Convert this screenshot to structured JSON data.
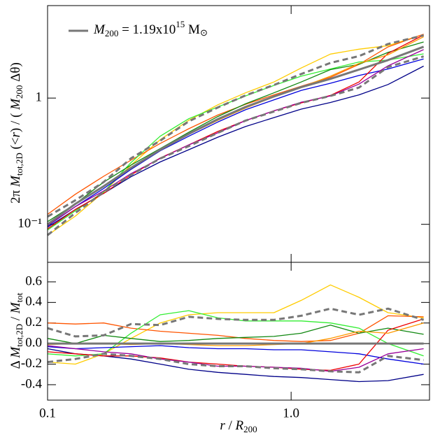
{
  "chart_data": [
    {
      "type": "line",
      "log_x": true,
      "log_y": true,
      "x": [
        0.1,
        0.13,
        0.17,
        0.22,
        0.29,
        0.38,
        0.5,
        0.65,
        0.85,
        1.1,
        1.45,
        1.9,
        2.5,
        3.5
      ],
      "xlim": [
        0.1,
        3.7
      ],
      "xticks": [
        0.1,
        1
      ],
      "ylim": [
        0.05,
        5.4
      ],
      "yticks": [
        {
          "value": 0.1,
          "label": "10⁻¹"
        },
        1
      ],
      "y_label_parts": [
        "2π ",
        "M",
        "tot,2D",
        " (<",
        "r",
        ") / ( ",
        "M",
        "200",
        " Δθ)"
      ],
      "series": [
        {
          "color": "#ffcc00",
          "values": [
            0.082,
            0.116,
            0.18,
            0.294,
            0.468,
            0.666,
            0.884,
            1.1,
            1.34,
            1.73,
            2.23,
            2.44,
            2.6,
            3.19
          ]
        },
        {
          "color": "#ff5500",
          "values": [
            0.12,
            0.173,
            0.24,
            0.322,
            0.437,
            0.572,
            0.734,
            0.893,
            1.06,
            1.24,
            1.46,
            1.85,
            2.54,
            3.21
          ]
        },
        {
          "color": "#33ee33",
          "values": [
            0.09,
            0.128,
            0.18,
            0.308,
            0.499,
            0.686,
            0.85,
            1.04,
            1.26,
            1.49,
            1.7,
            1.93,
            2.0,
            2.24
          ]
        },
        {
          "color": "#118811",
          "values": [
            0.105,
            0.145,
            0.216,
            0.294,
            0.398,
            0.536,
            0.714,
            0.901,
            1.1,
            1.34,
            1.68,
            1.85,
            2.3,
            2.78
          ]
        },
        {
          "color": "#0000dd",
          "values": [
            0.097,
            0.138,
            0.192,
            0.272,
            0.382,
            0.499,
            0.646,
            0.808,
            0.968,
            1.15,
            1.31,
            1.51,
            1.7,
            2.04
          ]
        },
        {
          "color": "#000088",
          "values": [
            0.095,
            0.131,
            0.176,
            0.238,
            0.312,
            0.39,
            0.49,
            0.595,
            0.7,
            0.817,
            0.923,
            1.06,
            1.28,
            1.79
          ]
        },
        {
          "color": "#ee0000",
          "values": [
            0.092,
            0.131,
            0.176,
            0.246,
            0.335,
            0.426,
            0.544,
            0.663,
            0.793,
            0.915,
            1.05,
            1.34,
            2.26,
            3.16
          ]
        },
        {
          "color": "#990099",
          "values": [
            0.098,
            0.138,
            0.184,
            0.252,
            0.332,
            0.426,
            0.53,
            0.663,
            0.793,
            0.927,
            1.04,
            1.29,
            1.8,
            2.42
          ]
        },
        {
          "color": "#ff9900",
          "values": [
            0.099,
            0.145,
            0.2,
            0.277,
            0.39,
            0.515,
            0.666,
            0.833,
            1.02,
            1.22,
            1.49,
            1.88,
            2.2,
            3.06
          ]
        },
        {
          "color": "#777777",
          "dash": true,
          "bold": true,
          "values": [
            0.115,
            0.155,
            0.216,
            0.333,
            0.46,
            0.655,
            0.843,
            1.05,
            1.27,
            1.55,
            1.9,
            2.15,
            2.68,
            3.14
          ]
        },
        {
          "color": "#777777",
          "dash": true,
          "bold": true,
          "values": [
            0.082,
            0.123,
            0.18,
            0.246,
            0.332,
            0.416,
            0.53,
            0.663,
            0.783,
            0.915,
            1.04,
            1.21,
            1.76,
            2.14
          ]
        },
        {
          "color": "#777777",
          "bold": true,
          "name_parts": [
            "M",
            "200",
            " = 1.19x10",
            "15",
            " M",
            "⊙"
          ],
          "values": [
            0.1,
            0.145,
            0.2,
            0.28,
            0.39,
            0.52,
            0.68,
            0.85,
            1.03,
            1.22,
            1.42,
            1.68,
            2.0,
            2.55
          ]
        }
      ]
    },
    {
      "type": "line",
      "log_x": true,
      "log_y": false,
      "x": [
        0.1,
        0.13,
        0.17,
        0.22,
        0.29,
        0.38,
        0.5,
        0.65,
        0.85,
        1.1,
        1.45,
        1.9,
        2.5,
        3.5
      ],
      "xlim": [
        0.1,
        3.7
      ],
      "xticks": [
        {
          "value": 0.1,
          "label": "0.1"
        },
        {
          "value": 1,
          "label": "1.0"
        }
      ],
      "ylim": [
        -0.55,
        0.79
      ],
      "yticks": [
        -0.4,
        -0.2,
        {
          "value": 0,
          "label": "0.0"
        },
        0.2,
        0.4,
        0.6
      ],
      "x_label_parts": [
        "r",
        " / ",
        "R",
        "200"
      ],
      "y_label_parts": [
        "Δ ",
        "M",
        "tot,2D",
        " / ",
        "M",
        "tot"
      ],
      "series": [
        {
          "color": "#ffcc00",
          "values": [
            -0.18,
            -0.2,
            -0.1,
            0.05,
            0.2,
            0.28,
            0.3,
            0.3,
            0.3,
            0.42,
            0.57,
            0.45,
            0.3,
            0.25
          ]
        },
        {
          "color": "#ff5500",
          "values": [
            0.2,
            0.19,
            0.2,
            0.15,
            0.12,
            0.1,
            0.08,
            0.05,
            0.03,
            0.02,
            0.03,
            0.1,
            0.27,
            0.26
          ]
        },
        {
          "color": "#33ee33",
          "values": [
            -0.1,
            -0.12,
            -0.1,
            0.1,
            0.28,
            0.32,
            0.25,
            0.22,
            0.22,
            0.22,
            0.2,
            0.15,
            0,
            -0.12
          ]
        },
        {
          "color": "#118811",
          "values": [
            0.05,
            0,
            0.08,
            0.05,
            0.02,
            0.03,
            0.05,
            0.06,
            0.07,
            0.1,
            0.18,
            0.1,
            0.15,
            0.09
          ]
        },
        {
          "color": "#0000dd",
          "values": [
            -0.03,
            -0.05,
            -0.04,
            -0.03,
            -0.02,
            -0.04,
            -0.05,
            -0.05,
            -0.06,
            -0.06,
            -0.08,
            -0.1,
            -0.15,
            -0.2
          ]
        },
        {
          "color": "#000088",
          "values": [
            -0.05,
            -0.1,
            -0.12,
            -0.15,
            -0.2,
            -0.25,
            -0.28,
            -0.3,
            -0.32,
            -0.33,
            -0.35,
            -0.37,
            -0.36,
            -0.3
          ]
        },
        {
          "color": "#ee0000",
          "values": [
            -0.08,
            -0.1,
            -0.12,
            -0.12,
            -0.14,
            -0.18,
            -0.2,
            -0.22,
            -0.23,
            -0.25,
            -0.26,
            -0.2,
            0.13,
            0.24
          ]
        },
        {
          "color": "#990099",
          "values": [
            -0.02,
            -0.05,
            -0.08,
            -0.1,
            -0.15,
            -0.18,
            -0.22,
            -0.22,
            -0.23,
            -0.24,
            -0.27,
            -0.23,
            -0.1,
            -0.05
          ]
        },
        {
          "color": "#ff9900",
          "values": [
            -0.01,
            0,
            0,
            -0.01,
            0,
            -0.01,
            -0.02,
            -0.02,
            -0.01,
            0,
            0.05,
            0.12,
            0.1,
            0.2
          ]
        },
        {
          "color": "#777777",
          "dash": true,
          "bold": true,
          "values": [
            0.15,
            0.07,
            0.08,
            0.19,
            0.18,
            0.26,
            0.24,
            0.23,
            0.23,
            0.27,
            0.34,
            0.28,
            0.34,
            0.23
          ]
        },
        {
          "color": "#777777",
          "dash": true,
          "bold": true,
          "values": [
            -0.18,
            -0.15,
            -0.1,
            -0.12,
            -0.15,
            -0.2,
            -0.22,
            -0.22,
            -0.24,
            -0.25,
            -0.27,
            -0.28,
            -0.12,
            -0.16
          ]
        },
        {
          "color": "#777777",
          "bold": true,
          "values": [
            0,
            0,
            0,
            0,
            0,
            0,
            0,
            0,
            0,
            0,
            0,
            0,
            0,
            0
          ]
        }
      ]
    }
  ]
}
